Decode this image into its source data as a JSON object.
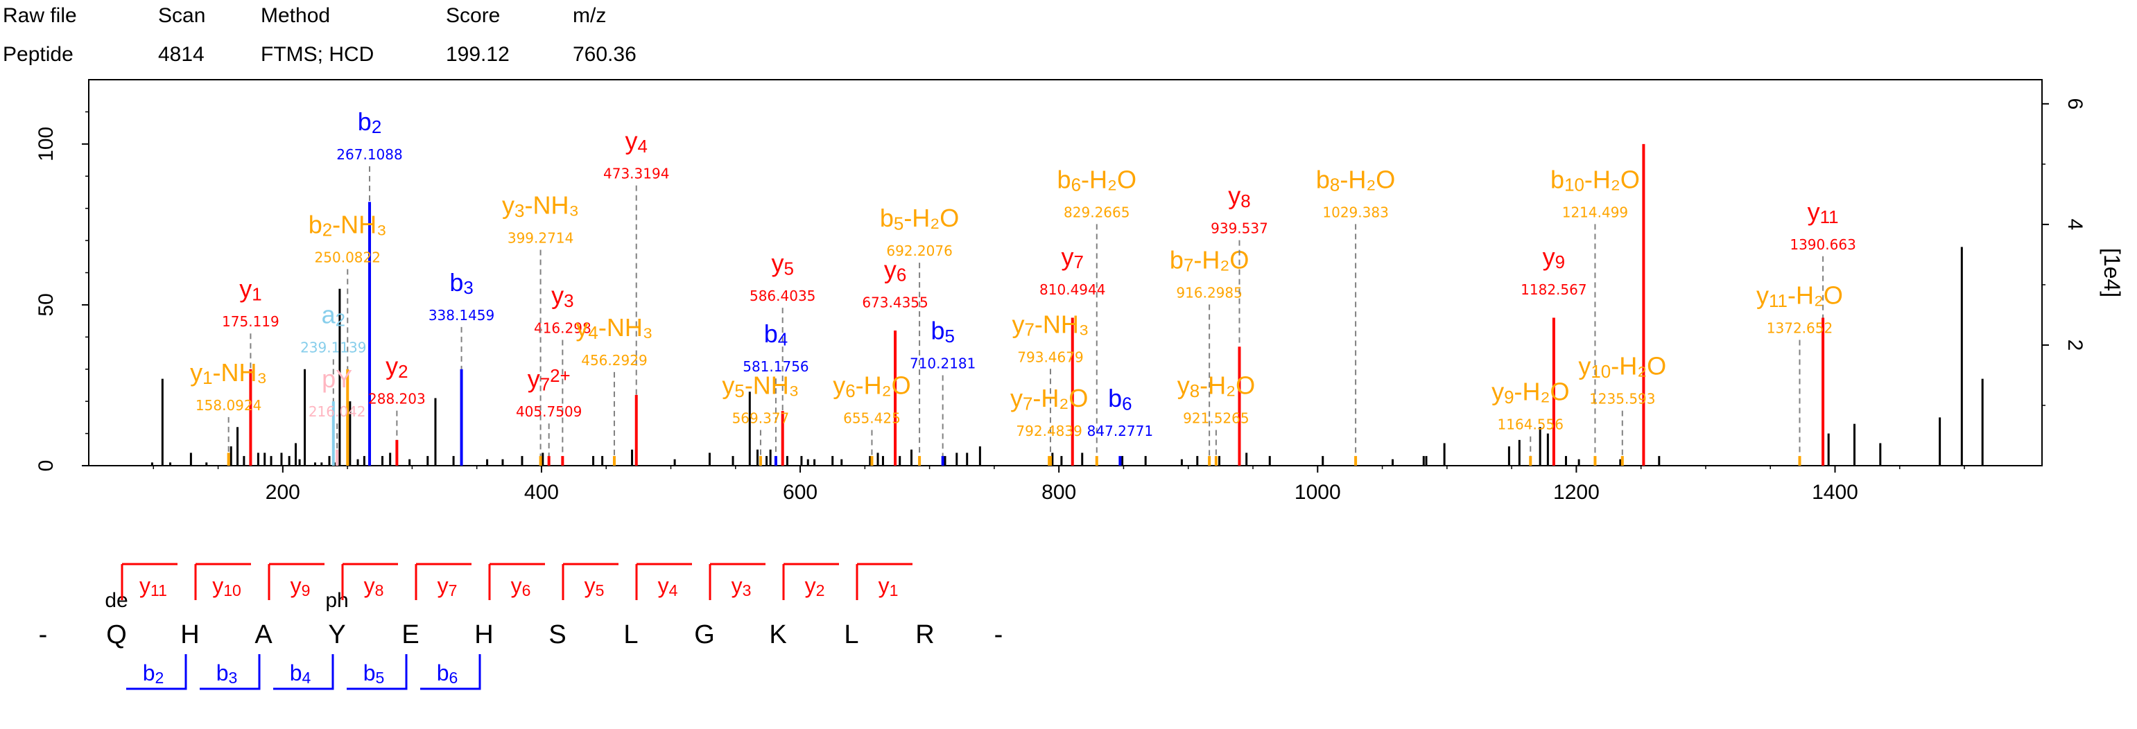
{
  "header": {
    "row1": [
      "Raw file",
      "Scan",
      "Method",
      "Score",
      "m/z"
    ],
    "row2": [
      "Peptide",
      "4814",
      "FTMS; HCD",
      "199.12",
      "760.36"
    ]
  },
  "colors": {
    "y": "#ff0000",
    "b": "#0000ff",
    "loss": "#ffa500",
    "a": "#87ceeb",
    "pY": "#ffb6c1",
    "unassigned": "#000000",
    "guide": "#808080"
  },
  "chart_data": {
    "type": "bar",
    "xlim": [
      50,
      1560
    ],
    "ylim": [
      0,
      120
    ],
    "right_ylim": [
      0,
      6.4
    ],
    "x_ticks": [
      200,
      400,
      600,
      800,
      1000,
      1200,
      1400
    ],
    "y_ticks": [
      0,
      50,
      100
    ],
    "right_y_ticks": [
      2,
      4,
      6
    ],
    "right_axis_label": "[1e4]",
    "unassigned_peaks": [
      [
        99,
        1
      ],
      [
        107,
        27
      ],
      [
        113,
        1
      ],
      [
        129,
        4
      ],
      [
        141,
        1
      ],
      [
        160,
        6
      ],
      [
        165,
        12
      ],
      [
        170,
        3
      ],
      [
        181,
        4
      ],
      [
        186,
        4
      ],
      [
        191,
        3
      ],
      [
        199,
        4
      ],
      [
        205,
        3
      ],
      [
        210,
        7
      ],
      [
        213,
        2
      ],
      [
        217,
        30
      ],
      [
        225,
        1
      ],
      [
        230,
        1
      ],
      [
        236,
        3
      ],
      [
        240,
        1
      ],
      [
        244,
        55
      ],
      [
        252,
        20
      ],
      [
        258,
        2
      ],
      [
        263,
        3
      ],
      [
        277,
        3
      ],
      [
        283,
        4
      ],
      [
        298,
        2
      ],
      [
        312,
        3
      ],
      [
        318,
        21
      ],
      [
        332,
        3
      ],
      [
        358,
        2
      ],
      [
        370,
        2
      ],
      [
        385,
        3
      ],
      [
        401,
        4
      ],
      [
        440,
        3
      ],
      [
        447,
        3
      ],
      [
        470,
        5
      ],
      [
        503,
        2
      ],
      [
        530,
        4
      ],
      [
        548,
        3
      ],
      [
        561,
        23
      ],
      [
        567,
        5
      ],
      [
        574,
        3
      ],
      [
        577,
        5
      ],
      [
        590,
        3
      ],
      [
        601,
        3
      ],
      [
        606,
        2
      ],
      [
        611,
        2
      ],
      [
        625,
        3
      ],
      [
        632,
        2
      ],
      [
        654,
        3
      ],
      [
        660,
        4
      ],
      [
        664,
        3
      ],
      [
        677,
        3
      ],
      [
        686,
        5
      ],
      [
        712,
        3
      ],
      [
        721,
        4
      ],
      [
        729,
        4
      ],
      [
        739,
        6
      ],
      [
        795,
        4
      ],
      [
        802,
        3
      ],
      [
        818,
        4
      ],
      [
        849,
        3
      ],
      [
        867,
        3
      ],
      [
        895,
        2
      ],
      [
        907,
        3
      ],
      [
        924,
        3
      ],
      [
        945,
        4
      ],
      [
        963,
        3
      ],
      [
        1004,
        3
      ],
      [
        1058,
        2
      ],
      [
        1082,
        3
      ],
      [
        1084,
        3
      ],
      [
        1098,
        7
      ],
      [
        1148,
        6
      ],
      [
        1156,
        8
      ],
      [
        1172,
        12
      ],
      [
        1178,
        10
      ],
      [
        1192,
        3
      ],
      [
        1202,
        2
      ],
      [
        1234,
        2
      ],
      [
        1264,
        3
      ],
      [
        1395,
        10
      ],
      [
        1415,
        13
      ],
      [
        1435,
        7
      ],
      [
        1481,
        15
      ],
      [
        1498,
        68
      ],
      [
        1514,
        27
      ]
    ],
    "annotated_peaks": [
      {
        "x": 175.119,
        "y": 30,
        "label": "y1",
        "mz": "175.119",
        "type": "y",
        "ly": 38
      },
      {
        "x": 158.0924,
        "y": 4,
        "label": "y1-NH3",
        "mz": "158.0924",
        "type": "loss",
        "ly": 12
      },
      {
        "x": 267.1088,
        "y": 82,
        "label": "b2",
        "mz": "267.1088",
        "type": "b",
        "ly": 90
      },
      {
        "x": 250.0822,
        "y": 30,
        "label": "b2-NH3",
        "mz": "250.0822",
        "type": "loss",
        "ly": 58
      },
      {
        "x": 239.1139,
        "y": 20,
        "label": "a2",
        "mz": "239.1139",
        "type": "a",
        "ly": 30
      },
      {
        "x": 242.0,
        "y": 5,
        "label": "pY",
        "mz": "216.042",
        "type": "pY",
        "ly": 10
      },
      {
        "x": 338.1459,
        "y": 30,
        "label": "b3",
        "mz": "338.1459",
        "type": "b",
        "ly": 40
      },
      {
        "x": 288.203,
        "y": 8,
        "label": "y2",
        "mz": "288.203",
        "type": "y",
        "ly": 14
      },
      {
        "x": 416.298,
        "y": 3,
        "label": "y3",
        "mz": "416.298",
        "type": "y",
        "ly": 36
      },
      {
        "x": 399.2714,
        "y": 3,
        "label": "y3-NH3",
        "mz": "399.2714",
        "type": "loss",
        "ly": 64
      },
      {
        "x": 405.7509,
        "y": 3,
        "label": "y7 2+",
        "mz": "405.7509",
        "type": "y",
        "ly": 10
      },
      {
        "x": 473.3194,
        "y": 22,
        "label": "y4",
        "mz": "473.3194",
        "type": "y",
        "ly": 84
      },
      {
        "x": 456.2929,
        "y": 3,
        "label": "y4-NH3",
        "mz": "456.2929",
        "type": "loss",
        "ly": 26
      },
      {
        "x": 586.4035,
        "y": 17,
        "label": "y5",
        "mz": "586.4035",
        "type": "y",
        "ly": 46
      },
      {
        "x": 581.1756,
        "y": 3,
        "label": "b4",
        "mz": "581.1756",
        "type": "b",
        "ly": 24
      },
      {
        "x": 569.377,
        "y": 3,
        "label": "y5-NH3",
        "mz": "569.377",
        "type": "loss",
        "ly": 8
      },
      {
        "x": 673.4355,
        "y": 42,
        "label": "y6",
        "mz": "673.4355",
        "type": "y",
        "ly": 44
      },
      {
        "x": 692.2076,
        "y": 3,
        "label": "b5-H2O",
        "mz": "692.2076",
        "type": "loss",
        "ly": 60
      },
      {
        "x": 655.425,
        "y": 3,
        "label": "y6-H2O",
        "mz": "655.425",
        "type": "loss",
        "ly": 8
      },
      {
        "x": 710.2181,
        "y": 3,
        "label": "b5",
        "mz": "710.2181",
        "type": "b",
        "ly": 25
      },
      {
        "x": 810.4944,
        "y": 46,
        "label": "y7",
        "mz": "810.4944",
        "type": "y",
        "ly": 48
      },
      {
        "x": 829.2665,
        "y": 3,
        "label": "b6-H2O",
        "mz": "829.2665",
        "type": "loss",
        "ly": 72
      },
      {
        "x": 793.4679,
        "y": 3,
        "label": "y7-NH3",
        "mz": "793.4679",
        "type": "loss",
        "ly": 27
      },
      {
        "x": 792.4839,
        "y": 3,
        "label": "y7-H2O",
        "mz": "792.4839",
        "type": "loss",
        "ly": 4
      },
      {
        "x": 916.2985,
        "y": 3,
        "label": "b7-H2O",
        "mz": "916.2985",
        "type": "loss",
        "ly": 47
      },
      {
        "x": 939.537,
        "y": 37,
        "label": "y8",
        "mz": "939.537",
        "type": "y",
        "ly": 67
      },
      {
        "x": 847.2771,
        "y": 3,
        "label": "b6",
        "mz": "847.2771",
        "type": "b",
        "ly": 4
      },
      {
        "x": 921.5265,
        "y": 3,
        "label": "y8-H2O",
        "mz": "921.5265",
        "type": "loss",
        "ly": 8
      },
      {
        "x": 1029.383,
        "y": 3,
        "label": "b8-H2O",
        "mz": "1029.383",
        "type": "loss",
        "ly": 72
      },
      {
        "x": 1182.567,
        "y": 46,
        "label": "y9",
        "mz": "1182.567",
        "type": "y",
        "ly": 48
      },
      {
        "x": 1164.556,
        "y": 3,
        "label": "y9-H2O",
        "mz": "1164.556",
        "type": "loss",
        "ly": 6
      },
      {
        "x": 1214.499,
        "y": 3,
        "label": "b10-H2O",
        "mz": "1214.499",
        "type": "loss",
        "ly": 72
      },
      {
        "x": 1235.593,
        "y": 3,
        "label": "y10-H2O",
        "mz": "1235.593",
        "type": "loss",
        "ly": 14
      },
      {
        "x": 1252.0,
        "y": 100,
        "label": "",
        "mz": "",
        "type": "y",
        "ly": 0
      },
      {
        "x": 1390.663,
        "y": 46,
        "label": "y11",
        "mz": "1390.663",
        "type": "y",
        "ly": 62
      },
      {
        "x": 1372.652,
        "y": 3,
        "label": "y11-H2O",
        "mz": "1372.652",
        "type": "loss",
        "ly": 36
      }
    ]
  },
  "sequence": {
    "residues": [
      "-",
      "Q",
      "H",
      "A",
      "Y",
      "E",
      "H",
      "S",
      "L",
      "G",
      "K",
      "L",
      "R",
      "-"
    ],
    "modifications": [
      {
        "index": 1,
        "label": "de"
      },
      {
        "index": 4,
        "label": "ph"
      }
    ],
    "y_ions": [
      "y11",
      "y10",
      "y9",
      "y8",
      "y7",
      "y6",
      "y5",
      "y4",
      "y3",
      "y2",
      "y1"
    ],
    "b_ions": [
      "b2",
      "b3",
      "b4",
      "b5",
      "b6"
    ]
  }
}
